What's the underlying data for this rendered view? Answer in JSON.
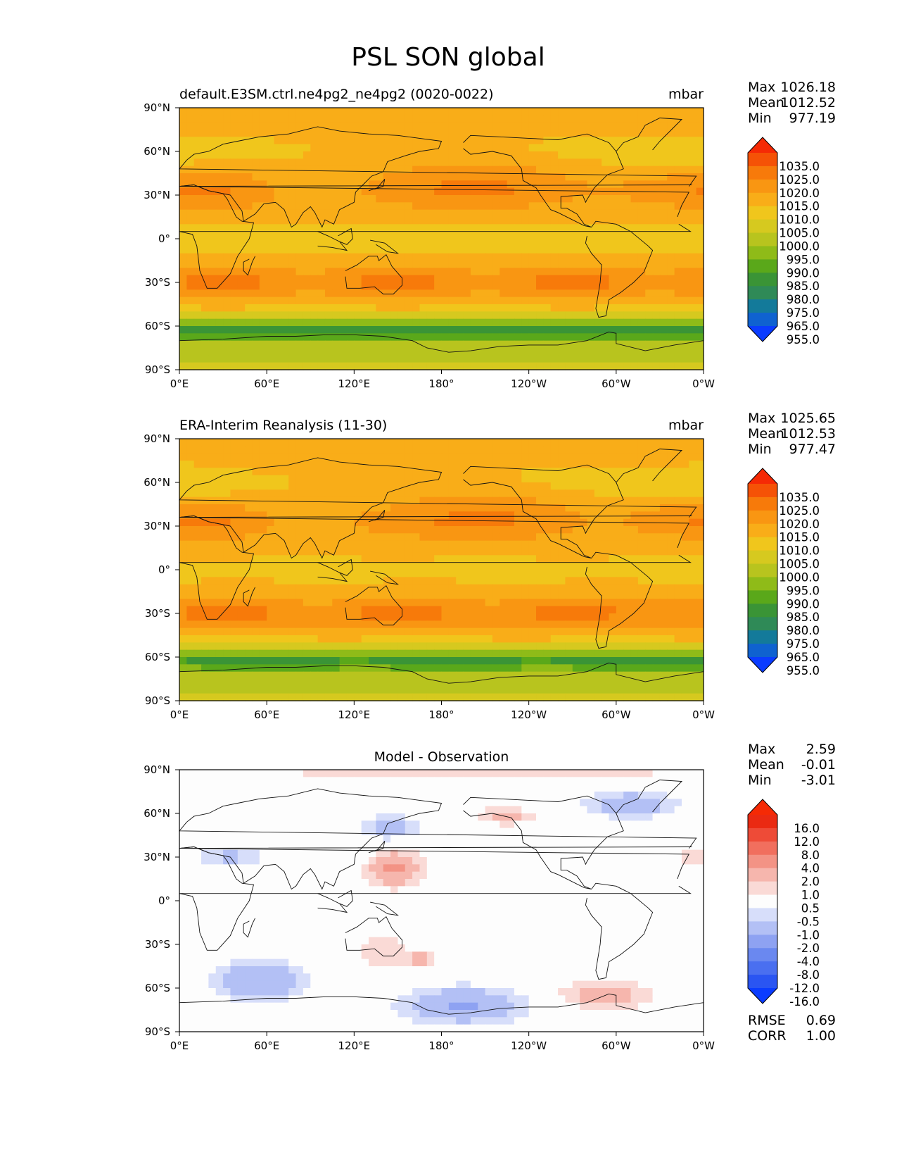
{
  "title": "PSL SON global",
  "lat_ticks": [
    "90°N",
    "60°N",
    "30°N",
    "0°",
    "30°S",
    "60°S",
    "90°S"
  ],
  "lon_ticks": [
    "0°E",
    "60°E",
    "120°E",
    "180°",
    "120°W",
    "60°W",
    "0°W"
  ],
  "stat_labels": {
    "max": "Max",
    "mean": "Mean",
    "min": "Min",
    "rmse": "RMSE",
    "corr": "CORR"
  },
  "colors": {
    "land_outline": "#111111",
    "frame": "#000000"
  },
  "chart_data": [
    {
      "type": "heatmap",
      "id": "model",
      "title_left": "default.E3SM.ctrl.ne4pg2_ne4pg2 (0020-0022)",
      "title_right": "mbar",
      "stats": {
        "max": "1026.18",
        "mean": "1012.52",
        "min": "977.19"
      },
      "levels": [
        "955.0",
        "965.0",
        "975.0",
        "980.0",
        "985.0",
        "990.0",
        "995.0",
        "1000.0",
        "1005.0",
        "1010.0",
        "1015.0",
        "1020.0",
        "1025.0",
        "1035.0"
      ],
      "colorbar_colors": [
        "#0a3cff",
        "#0f62d0",
        "#137a9a",
        "#2f8a57",
        "#3a9436",
        "#5aa81a",
        "#8fbb18",
        "#b8c41e",
        "#d6c91f",
        "#f0c61c",
        "#f9ad18",
        "#f99612",
        "#f77a0a",
        "#f55206",
        "#f52a05"
      ],
      "xlim": [
        0,
        360
      ],
      "ylim": [
        -90,
        90
      ],
      "field": {
        "kind": "abs",
        "base": 1011
      }
    },
    {
      "type": "heatmap",
      "id": "obs",
      "title_left": "ERA-Interim Reanalysis (11-30)",
      "title_right": "mbar",
      "stats": {
        "max": "1025.65",
        "mean": "1012.53",
        "min": "977.47"
      },
      "levels": [
        "955.0",
        "965.0",
        "975.0",
        "980.0",
        "985.0",
        "990.0",
        "995.0",
        "1000.0",
        "1005.0",
        "1010.0",
        "1015.0",
        "1020.0",
        "1025.0",
        "1035.0"
      ],
      "colorbar_colors": [
        "#0a3cff",
        "#0f62d0",
        "#137a9a",
        "#2f8a57",
        "#3a9436",
        "#5aa81a",
        "#8fbb18",
        "#b8c41e",
        "#d6c91f",
        "#f0c61c",
        "#f9ad18",
        "#f99612",
        "#f77a0a",
        "#f55206",
        "#f52a05"
      ],
      "xlim": [
        0,
        360
      ],
      "ylim": [
        -90,
        90
      ],
      "field": {
        "kind": "abs",
        "base": 1011
      }
    },
    {
      "type": "heatmap",
      "id": "diff",
      "title_center": "Model - Observation",
      "stats": {
        "max": "2.59",
        "mean": "-0.01",
        "min": "-3.01"
      },
      "rmse": "0.69",
      "corr": "1.00",
      "levels": [
        "-16.0",
        "-12.0",
        "-8.0",
        "-4.0",
        "-2.0",
        "-1.0",
        "-0.5",
        "0.5",
        "1.0",
        "2.0",
        "4.0",
        "8.0",
        "12.0",
        "16.0"
      ],
      "colorbar_colors": [
        "#0a3cff",
        "#2a55f2",
        "#4a6ff0",
        "#6a88f0",
        "#8ea2f2",
        "#b3c0f5",
        "#d7defa",
        "#fdfdfd",
        "#fadad6",
        "#f6b6ad",
        "#f39385",
        "#f16f5e",
        "#ee4b37",
        "#ea2a12",
        "#f52a05"
      ],
      "xlim": [
        0,
        360
      ],
      "ylim": [
        -90,
        90
      ],
      "field": {
        "kind": "diff"
      }
    }
  ]
}
